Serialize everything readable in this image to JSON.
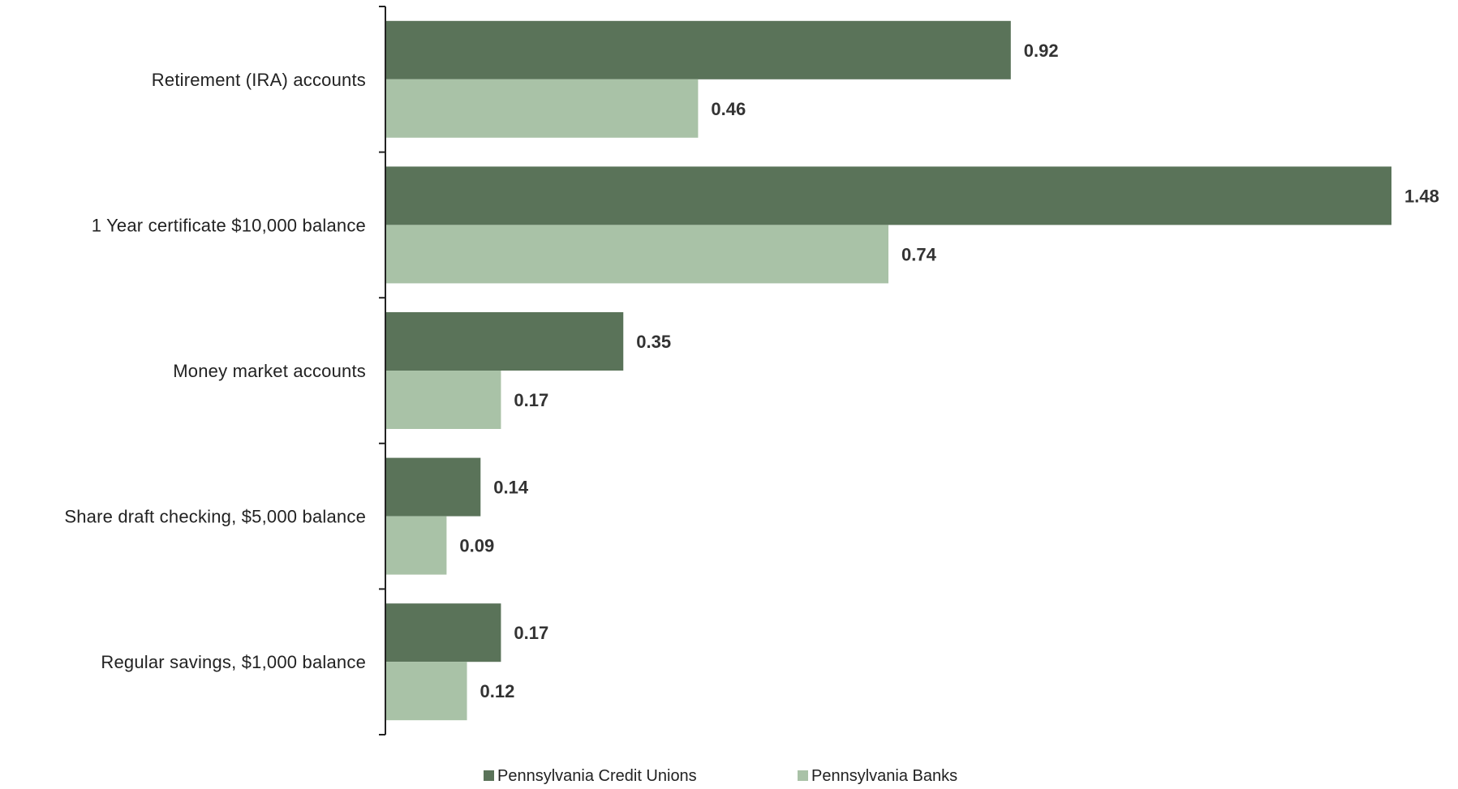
{
  "chart_data": {
    "type": "bar",
    "orientation": "horizontal",
    "categories": [
      "Retirement (IRA) accounts",
      "1 Year certificate $10,000 balance",
      "Money market accounts",
      "Share draft checking, $5,000 balance",
      "Regular savings, $1,000 balance"
    ],
    "series": [
      {
        "name": "Pennsylvania Credit Unions",
        "color": "#5a7359",
        "values": [
          0.92,
          1.48,
          0.35,
          0.14,
          0.17
        ],
        "labels": [
          "0.92",
          "1.48",
          "0.35",
          "0.14",
          "0.17"
        ]
      },
      {
        "name": "Pennsylvania Banks",
        "color": "#a9c2a7",
        "values": [
          0.46,
          0.74,
          0.17,
          0.09,
          0.12
        ],
        "labels": [
          "0.46",
          "0.74",
          "0.17",
          "0.09",
          "0.12"
        ]
      }
    ],
    "xlim": [
      0,
      1.48
    ],
    "grid": false,
    "legend": "bottom-center",
    "axis_color": "#222222"
  }
}
